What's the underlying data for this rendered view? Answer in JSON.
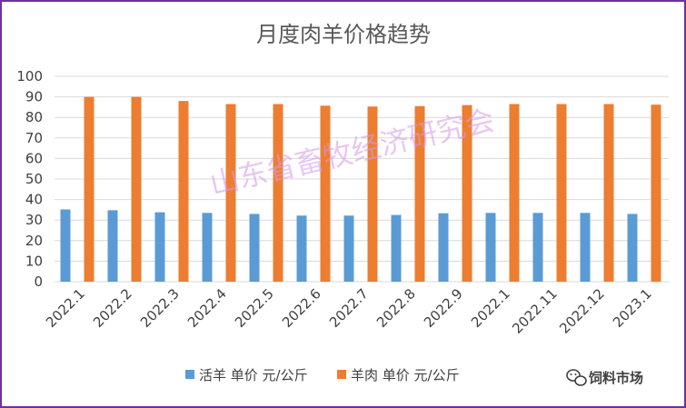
{
  "chart_data": {
    "type": "bar",
    "title": "月度肉羊价格趋势",
    "categories": [
      "2022.1",
      "2022.2",
      "2022.3",
      "2022.4",
      "2022.5",
      "2022.6",
      "2022.7",
      "2022.8",
      "2022.9",
      "2022.1",
      "2022.11",
      "2022.12",
      "2023.1"
    ],
    "series": [
      {
        "name": "活羊 单价 元/公斤",
        "color": "#5b9bd5",
        "values": [
          35.2,
          34.8,
          33.8,
          33.5,
          33.0,
          32.2,
          32.2,
          32.5,
          33.3,
          33.5,
          33.5,
          33.5,
          33.0
        ]
      },
      {
        "name": "羊肉 单价 元/公斤",
        "color": "#ed7d31",
        "values": [
          90.0,
          90.0,
          88.0,
          86.5,
          86.5,
          85.7,
          85.3,
          85.5,
          86.0,
          86.5,
          86.5,
          86.5,
          86.2
        ]
      }
    ],
    "ylim": [
      0,
      100
    ],
    "yticks": [
      0,
      10,
      20,
      30,
      40,
      50,
      60,
      70,
      80,
      90,
      100
    ],
    "grid": true,
    "legend_position": "bottom",
    "xlabel": "",
    "ylabel": ""
  },
  "watermark": "山东省畜牧经济研究会",
  "brand": {
    "icon": "wechat-icon",
    "text": "饲料市场"
  },
  "colors": {
    "border": "#7030a0",
    "grid": "#d9d9d9"
  }
}
